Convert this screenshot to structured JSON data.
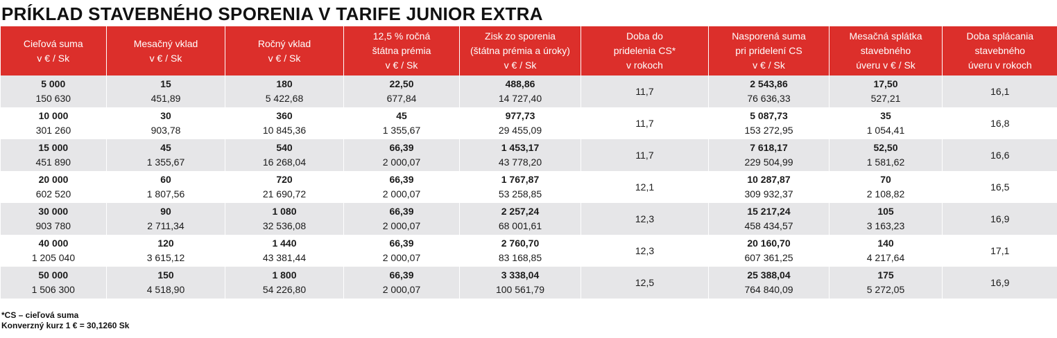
{
  "title": "PRÍKLAD STAVEBNÉHO SPORENIA V TARIFE JUNIOR EXTRA",
  "headers": [
    [
      "Cieľová suma",
      "v € / Sk"
    ],
    [
      "Mesačný vklad",
      "v € / Sk"
    ],
    [
      "Ročný vklad",
      "v € / Sk"
    ],
    [
      "12,5 % ročná",
      "štátna prémia",
      "v € / Sk"
    ],
    [
      "Zisk zo sporenia",
      "(štátna prémia a úroky)",
      "v € / Sk"
    ],
    [
      "Doba do",
      "pridelenia CS*",
      "v rokoch"
    ],
    [
      "Nasporená suma",
      "pri pridelení CS",
      "v € / Sk"
    ],
    [
      "Mesačná splátka",
      "stavebného",
      "úveru v € / Sk"
    ],
    [
      "Doba splácania",
      "stavebného",
      "úveru v rokoch"
    ]
  ],
  "rows": [
    {
      "cells": [
        [
          "5 000",
          "150 630"
        ],
        [
          "15",
          "451,89"
        ],
        [
          "180",
          "5 422,68"
        ],
        [
          "22,50",
          "677,84"
        ],
        [
          "488,86",
          "14 727,40"
        ],
        [
          "11,7"
        ],
        [
          "2 543,86",
          "76 636,33"
        ],
        [
          "17,50",
          "527,21"
        ],
        [
          "16,1"
        ]
      ]
    },
    {
      "cells": [
        [
          "10 000",
          "301 260"
        ],
        [
          "30",
          "903,78"
        ],
        [
          "360",
          "10 845,36"
        ],
        [
          "45",
          "1 355,67"
        ],
        [
          "977,73",
          "29 455,09"
        ],
        [
          "11,7"
        ],
        [
          "5 087,73",
          "153 272,95"
        ],
        [
          "35",
          "1 054,41"
        ],
        [
          "16,8"
        ]
      ]
    },
    {
      "cells": [
        [
          "15 000",
          "451 890"
        ],
        [
          "45",
          "1 355,67"
        ],
        [
          "540",
          "16 268,04"
        ],
        [
          "66,39",
          "2 000,07"
        ],
        [
          "1 453,17",
          "43 778,20"
        ],
        [
          "11,7"
        ],
        [
          "7 618,17",
          "229 504,99"
        ],
        [
          "52,50",
          "1 581,62"
        ],
        [
          "16,6"
        ]
      ]
    },
    {
      "cells": [
        [
          "20 000",
          "602 520"
        ],
        [
          "60",
          "1 807,56"
        ],
        [
          "720",
          "21 690,72"
        ],
        [
          "66,39",
          "2 000,07"
        ],
        [
          "1 767,87",
          "53 258,85"
        ],
        [
          "12,1"
        ],
        [
          "10 287,87",
          "309 932,37"
        ],
        [
          "70",
          "2 108,82"
        ],
        [
          "16,5"
        ]
      ]
    },
    {
      "cells": [
        [
          "30 000",
          "903 780"
        ],
        [
          "90",
          "2 711,34"
        ],
        [
          "1 080",
          "32 536,08"
        ],
        [
          "66,39",
          "2 000,07"
        ],
        [
          "2 257,24",
          "68 001,61"
        ],
        [
          "12,3"
        ],
        [
          "15 217,24",
          "458 434,57"
        ],
        [
          "105",
          "3 163,23"
        ],
        [
          "16,9"
        ]
      ]
    },
    {
      "cells": [
        [
          "40 000",
          "1 205 040"
        ],
        [
          "120",
          "3 615,12"
        ],
        [
          "1 440",
          "43 381,44"
        ],
        [
          "66,39",
          "2 000,07"
        ],
        [
          "2 760,70",
          "83 168,85"
        ],
        [
          "12,3"
        ],
        [
          "20 160,70",
          "607 361,25"
        ],
        [
          "140",
          "4 217,64"
        ],
        [
          "17,1"
        ]
      ]
    },
    {
      "cells": [
        [
          "50 000",
          "1 506 300"
        ],
        [
          "150",
          "4 518,90"
        ],
        [
          "1 800",
          "54 226,80"
        ],
        [
          "66,39",
          "2 000,07"
        ],
        [
          "3 338,04",
          "100 561,79"
        ],
        [
          "12,5"
        ],
        [
          "25 388,04",
          "764 840,09"
        ],
        [
          "175",
          "5 272,05"
        ],
        [
          "16,9"
        ]
      ]
    }
  ],
  "footnotes": [
    "*CS – cieľová suma",
    "Konverzný kurz 1 € = 30,1260 Sk"
  ],
  "colors": {
    "header_bg": "#dc2f2b",
    "stripe_bg": "#e6e6e8",
    "header_text": "#ffffff"
  }
}
